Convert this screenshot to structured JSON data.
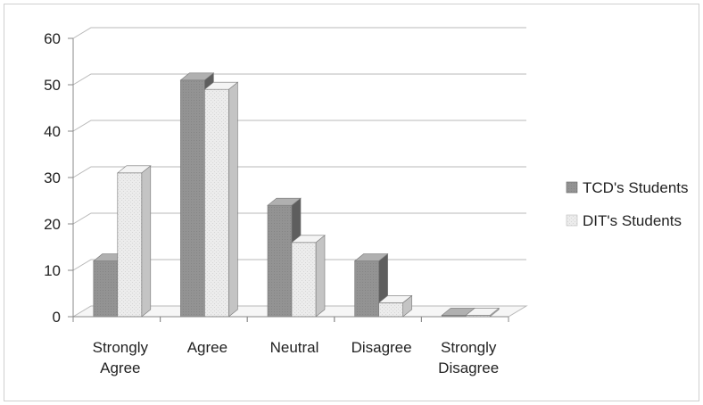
{
  "chart_data": {
    "type": "bar",
    "title": "",
    "xlabel": "",
    "ylabel": "",
    "categories": [
      "Strongly Agree",
      "Agree",
      "Neutral",
      "Disagree",
      "Strongly Disagree"
    ],
    "category_lines": [
      [
        "Strongly",
        "Agree"
      ],
      [
        "Agree"
      ],
      [
        "Neutral"
      ],
      [
        "Disagree"
      ],
      [
        "Strongly",
        "Disagree"
      ]
    ],
    "series": [
      {
        "name": "TCD's Students",
        "values": [
          12,
          51,
          24,
          12,
          0.3
        ]
      },
      {
        "name": "DIT's Students",
        "values": [
          31,
          49,
          16,
          3,
          0.3
        ]
      }
    ],
    "ylim": [
      0,
      60
    ],
    "yticks": [
      0,
      10,
      20,
      30,
      40,
      50,
      60
    ],
    "grid": true,
    "legend_position": "right",
    "style": "3d-clustered-column",
    "colors": {
      "tcd_front": "#8f8f8f",
      "tcd_side": "#5e5e5e",
      "tcd_top": "#b0b0b0",
      "dit_front": "#e9e9e9",
      "dit_side": "#c4c4c4",
      "dit_top": "#f4f4f4",
      "grid": "#b8b8b8",
      "axis": "#8a8a8a"
    }
  }
}
